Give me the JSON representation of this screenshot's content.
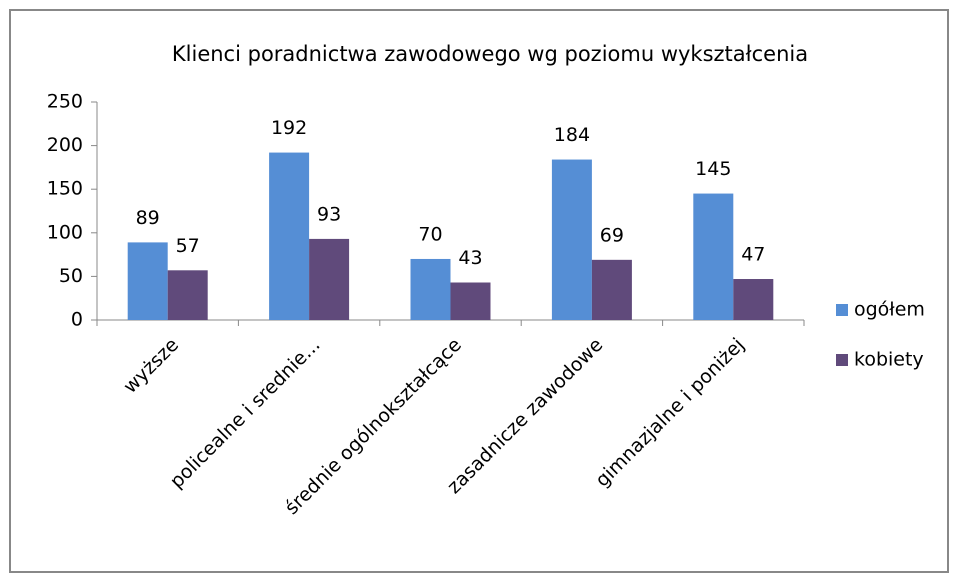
{
  "chart_data": {
    "type": "bar",
    "title": "Klienci poradnictwa zawodowego  wg poziomu wykształcenia",
    "categories": [
      "wyższe",
      "policealne i srednie...",
      "średnie ogólnokształcące",
      "zasadnicze zawodowe",
      "gimnazjalne i poniżej"
    ],
    "series": [
      {
        "name": "ogółem",
        "color": "#558ed5",
        "values": [
          89,
          192,
          70,
          184,
          145
        ]
      },
      {
        "name": "kobiety",
        "color": "#604a7b",
        "values": [
          57,
          93,
          43,
          69,
          47
        ]
      }
    ],
    "ylim": [
      0,
      250
    ],
    "yticks": [
      0,
      50,
      100,
      150,
      200,
      250
    ],
    "legend": "right"
  }
}
